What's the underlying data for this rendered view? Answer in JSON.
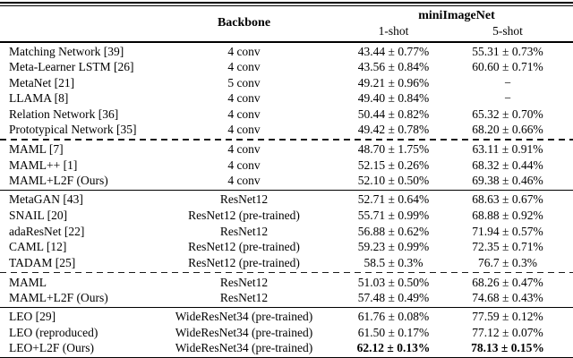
{
  "colors": {
    "text": "#000000",
    "background": "#ffffff",
    "rule": "#000000"
  },
  "table": {
    "header": {
      "backbone_label": "Backbone",
      "dataset_label": "miniImageNet",
      "shot1_label": "1-shot",
      "shot2_label": "5-shot"
    },
    "groups": [
      {
        "separator_after": "dashed",
        "rows": [
          {
            "method": "Matching Network [39]",
            "backbone": "4 conv",
            "one_shot": "43.44 ± 0.77%",
            "five_shot": "55.31 ± 0.73%"
          },
          {
            "method": "Meta-Learner LSTM [26]",
            "backbone": "4 conv",
            "one_shot": "43.56 ± 0.84%",
            "five_shot": "60.60 ± 0.71%"
          },
          {
            "method": "MetaNet [21]",
            "backbone": "5 conv",
            "one_shot": "49.21 ± 0.96%",
            "five_shot": "−"
          },
          {
            "method": "LLAMA [8]",
            "backbone": "4 conv",
            "one_shot": "49.40 ± 0.84%",
            "five_shot": "−"
          },
          {
            "method": "Relation Network [36]",
            "backbone": "4 conv",
            "one_shot": "50.44 ± 0.82%",
            "five_shot": "65.32 ± 0.70%"
          },
          {
            "method": "Prototypical Network [35]",
            "backbone": "4 conv",
            "one_shot": "49.42 ± 0.78%",
            "five_shot": "68.20 ± 0.66%"
          }
        ]
      },
      {
        "separator_after": "solid",
        "rows": [
          {
            "method": "MAML [7]",
            "backbone": "4 conv",
            "one_shot": "48.70 ± 1.75%",
            "five_shot": "63.11 ± 0.91%"
          },
          {
            "method": "MAML++ [1]",
            "backbone": "4 conv",
            "one_shot": "52.15 ± 0.26%",
            "five_shot": "68.32 ± 0.44%"
          },
          {
            "method": "MAML+L2F (Ours)",
            "backbone": "4 conv",
            "one_shot": "52.10 ± 0.50%",
            "five_shot": "69.38 ± 0.46%"
          }
        ]
      },
      {
        "separator_after": "dashed",
        "rows": [
          {
            "method": "MetaGAN [43]",
            "backbone": "ResNet12",
            "one_shot": "52.71 ± 0.64%",
            "five_shot": "68.63 ± 0.67%"
          },
          {
            "method": "SNAIL [20]",
            "backbone": "ResNet12 (pre-trained)",
            "one_shot": "55.71 ± 0.99%",
            "five_shot": "68.88 ± 0.92%"
          },
          {
            "method": "adaResNet [22]",
            "backbone": "ResNet12",
            "one_shot": "56.88 ± 0.62%",
            "five_shot": "71.94 ± 0.57%"
          },
          {
            "method": "CAML [12]",
            "backbone": "ResNet12 (pre-trained)",
            "one_shot": "59.23 ± 0.99%",
            "five_shot": "72.35 ± 0.71%"
          },
          {
            "method": "TADAM [25]",
            "backbone": "ResNet12 (pre-trained)",
            "one_shot": "58.5 ± 0.3%",
            "five_shot": "76.7 ± 0.3%"
          }
        ]
      },
      {
        "separator_after": "solid",
        "rows": [
          {
            "method": "MAML",
            "backbone": "ResNet12",
            "one_shot": "51.03 ± 0.50%",
            "five_shot": "68.26 ± 0.47%"
          },
          {
            "method": "MAML+L2F (Ours)",
            "backbone": "ResNet12",
            "one_shot": "57.48 ± 0.49%",
            "five_shot": "74.68 ± 0.43%"
          }
        ]
      },
      {
        "separator_after": null,
        "rows": [
          {
            "method": "LEO [29]",
            "backbone": "WideResNet34 (pre-trained)",
            "one_shot": "61.76 ± 0.08%",
            "five_shot": "77.59 ± 0.12%"
          },
          {
            "method": "LEO (reproduced)",
            "backbone": "WideResNet34 (pre-trained)",
            "one_shot": "61.50 ± 0.17%",
            "five_shot": "77.12 ± 0.07%"
          },
          {
            "method": "LEO+L2F (Ours)",
            "backbone": "WideResNet34 (pre-trained)",
            "one_shot": "62.12 ± 0.13%",
            "five_shot": "78.13 ± 0.15%",
            "bold": true
          }
        ]
      }
    ]
  }
}
